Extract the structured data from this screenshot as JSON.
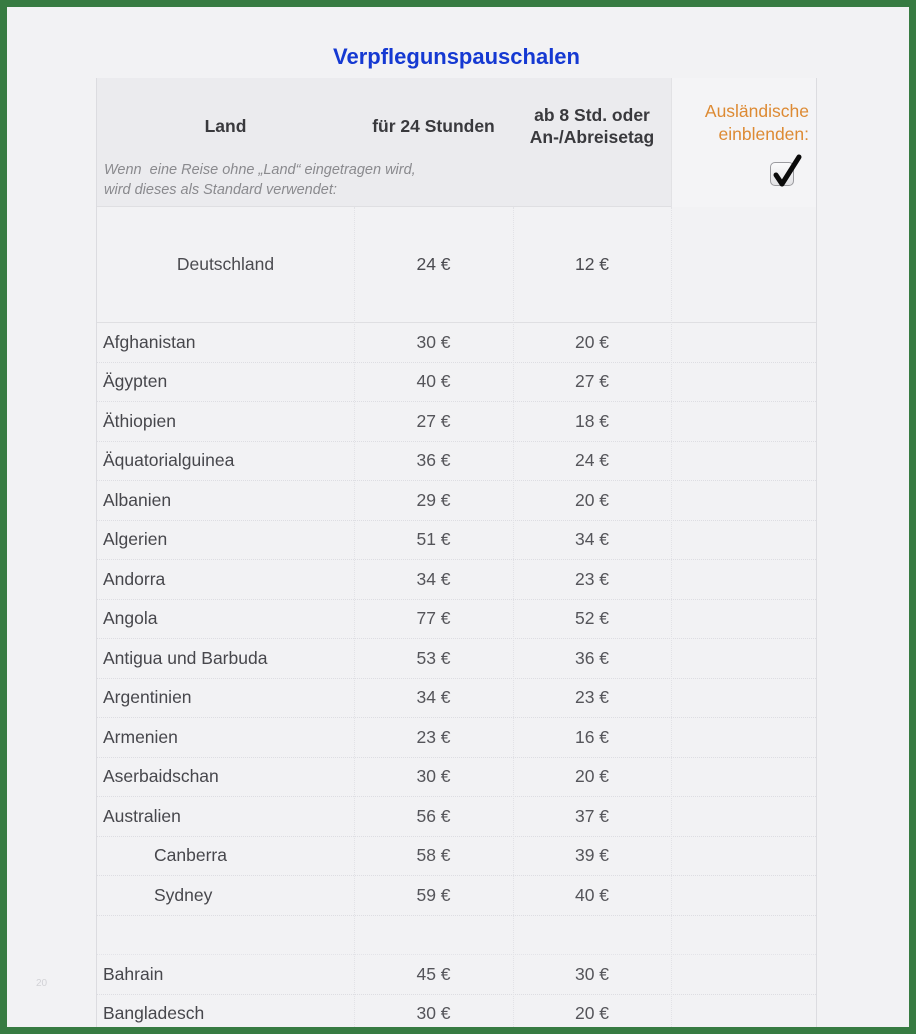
{
  "page": {
    "title": "Verpflegunspauschalen",
    "watermark": "20"
  },
  "colors": {
    "frame_green": "#377b42",
    "title_blue": "#1539d2",
    "accent_orange": "#dd8a33",
    "page_bg": "#f2f2f4"
  },
  "table": {
    "columns": {
      "land": "Land",
      "h24": "für 24 Stunden",
      "h8": "ab 8 Std. oder\nAn-/Abreisetag"
    },
    "toggle": {
      "label": "Ausländische einblenden:",
      "checked": true
    },
    "note_line1": "Wenn  eine Reise ohne „Land“ eingetragen wird,",
    "note_line2": "wird dieses als Standard verwendet:",
    "default_row": {
      "land": "Deutschland",
      "h24": "24 €",
      "h8": "12 €"
    },
    "rows": [
      {
        "land": "Afghanistan",
        "h24": "30 €",
        "h8": "20 €"
      },
      {
        "land": "Ägypten",
        "h24": "40 €",
        "h8": "27 €"
      },
      {
        "land": "Äthiopien",
        "h24": "27 €",
        "h8": "18 €"
      },
      {
        "land": "Äquatorialguinea",
        "h24": "36 €",
        "h8": "24 €"
      },
      {
        "land": "Albanien",
        "h24": "29 €",
        "h8": "20 €"
      },
      {
        "land": "Algerien",
        "h24": "51 €",
        "h8": "34 €"
      },
      {
        "land": "Andorra",
        "h24": "34 €",
        "h8": "23 €"
      },
      {
        "land": "Angola",
        "h24": "77 €",
        "h8": "52 €"
      },
      {
        "land": "Antigua und Barbuda",
        "h24": "53 €",
        "h8": "36 €"
      },
      {
        "land": "Argentinien",
        "h24": "34 €",
        "h8": "23 €"
      },
      {
        "land": "Armenien",
        "h24": "23 €",
        "h8": "16 €"
      },
      {
        "land": "Aserbaidschan",
        "h24": "30 €",
        "h8": "20 €"
      },
      {
        "land": "Australien",
        "h24": "56 €",
        "h8": "37 €"
      },
      {
        "land": "Canberra",
        "h24": "58 €",
        "h8": "39 €",
        "indent": true
      },
      {
        "land": "Sydney",
        "h24": "59 €",
        "h8": "40 €",
        "indent": true
      },
      {
        "spacer": true
      },
      {
        "land": "Bahrain",
        "h24": "45 €",
        "h8": "30 €"
      },
      {
        "land": "Bangladesch",
        "h24": "30 €",
        "h8": "20 €"
      }
    ]
  }
}
